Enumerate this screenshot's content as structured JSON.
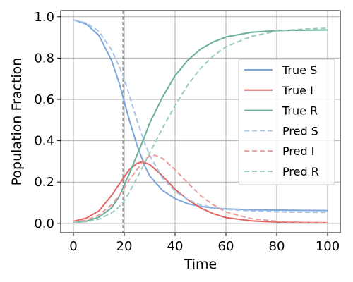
{
  "chart_data": {
    "type": "line",
    "title": "",
    "xlabel": "Time",
    "ylabel": "Population Fraction",
    "xlim": [
      -5,
      105
    ],
    "ylim": [
      -0.045,
      1.03
    ],
    "xticks": [
      0,
      20,
      40,
      60,
      80,
      100
    ],
    "xtick_labels": [
      "0",
      "20",
      "40",
      "60",
      "80",
      "100"
    ],
    "yticks": [
      0.0,
      0.2,
      0.4,
      0.6,
      0.8,
      1.0
    ],
    "ytick_labels": [
      "0.0",
      "0.2",
      "0.4",
      "0.6",
      "0.8",
      "1.0"
    ],
    "grid": true,
    "legend_position": "right",
    "vline": {
      "x": 19.5,
      "color": "#808080",
      "style": "dashed"
    },
    "series": [
      {
        "name": "True S",
        "color": "#7BA6DB",
        "style": "solid",
        "points": [
          [
            0,
            0.985
          ],
          [
            5,
            0.965
          ],
          [
            10,
            0.91
          ],
          [
            15,
            0.79
          ],
          [
            18,
            0.68
          ],
          [
            20,
            0.59
          ],
          [
            22,
            0.5
          ],
          [
            25,
            0.38
          ],
          [
            28,
            0.28
          ],
          [
            30,
            0.23
          ],
          [
            35,
            0.16
          ],
          [
            40,
            0.12
          ],
          [
            45,
            0.095
          ],
          [
            50,
            0.082
          ],
          [
            55,
            0.075
          ],
          [
            60,
            0.07
          ],
          [
            70,
            0.066
          ],
          [
            80,
            0.064
          ],
          [
            90,
            0.063
          ],
          [
            100,
            0.062
          ]
        ]
      },
      {
        "name": "True I",
        "color": "#E06666",
        "style": "solid",
        "points": [
          [
            0,
            0.01
          ],
          [
            5,
            0.025
          ],
          [
            10,
            0.06
          ],
          [
            15,
            0.135
          ],
          [
            18,
            0.19
          ],
          [
            20,
            0.225
          ],
          [
            22,
            0.26
          ],
          [
            25,
            0.29
          ],
          [
            27,
            0.298
          ],
          [
            30,
            0.285
          ],
          [
            35,
            0.23
          ],
          [
            40,
            0.165
          ],
          [
            45,
            0.115
          ],
          [
            50,
            0.075
          ],
          [
            55,
            0.047
          ],
          [
            60,
            0.028
          ],
          [
            70,
            0.012
          ],
          [
            80,
            0.006
          ],
          [
            90,
            0.004
          ],
          [
            100,
            0.003
          ]
        ]
      },
      {
        "name": "True R",
        "color": "#6AAE9C",
        "style": "solid",
        "points": [
          [
            0,
            0.005
          ],
          [
            5,
            0.01
          ],
          [
            10,
            0.03
          ],
          [
            15,
            0.075
          ],
          [
            18,
            0.13
          ],
          [
            20,
            0.185
          ],
          [
            22,
            0.24
          ],
          [
            25,
            0.33
          ],
          [
            28,
            0.42
          ],
          [
            30,
            0.485
          ],
          [
            35,
            0.61
          ],
          [
            40,
            0.715
          ],
          [
            45,
            0.79
          ],
          [
            50,
            0.843
          ],
          [
            55,
            0.878
          ],
          [
            60,
            0.902
          ],
          [
            70,
            0.925
          ],
          [
            80,
            0.933
          ],
          [
            90,
            0.935
          ],
          [
            100,
            0.936
          ]
        ]
      },
      {
        "name": "Pred S",
        "color": "#A7C4E7",
        "style": "dashed",
        "points": [
          [
            0,
            0.985
          ],
          [
            5,
            0.97
          ],
          [
            10,
            0.93
          ],
          [
            15,
            0.84
          ],
          [
            18,
            0.76
          ],
          [
            20,
            0.7
          ],
          [
            22,
            0.62
          ],
          [
            25,
            0.5
          ],
          [
            28,
            0.39
          ],
          [
            30,
            0.33
          ],
          [
            35,
            0.22
          ],
          [
            40,
            0.155
          ],
          [
            45,
            0.115
          ],
          [
            50,
            0.09
          ],
          [
            55,
            0.076
          ],
          [
            60,
            0.068
          ],
          [
            70,
            0.06
          ],
          [
            80,
            0.056
          ],
          [
            90,
            0.054
          ],
          [
            100,
            0.053
          ]
        ]
      },
      {
        "name": "Pred I",
        "color": "#EA9A9A",
        "style": "dashed",
        "points": [
          [
            0,
            0.008
          ],
          [
            5,
            0.015
          ],
          [
            10,
            0.04
          ],
          [
            15,
            0.09
          ],
          [
            18,
            0.135
          ],
          [
            20,
            0.17
          ],
          [
            22,
            0.21
          ],
          [
            25,
            0.26
          ],
          [
            28,
            0.31
          ],
          [
            30,
            0.325
          ],
          [
            32,
            0.33
          ],
          [
            35,
            0.315
          ],
          [
            40,
            0.26
          ],
          [
            45,
            0.195
          ],
          [
            50,
            0.135
          ],
          [
            55,
            0.09
          ],
          [
            60,
            0.055
          ],
          [
            70,
            0.023
          ],
          [
            80,
            0.01
          ],
          [
            90,
            0.005
          ],
          [
            100,
            0.003
          ]
        ]
      },
      {
        "name": "Pred R",
        "color": "#9ACDBE",
        "style": "dashed",
        "points": [
          [
            0,
            0.005
          ],
          [
            5,
            0.008
          ],
          [
            10,
            0.02
          ],
          [
            15,
            0.05
          ],
          [
            18,
            0.08
          ],
          [
            20,
            0.11
          ],
          [
            22,
            0.15
          ],
          [
            25,
            0.22
          ],
          [
            28,
            0.29
          ],
          [
            30,
            0.34
          ],
          [
            35,
            0.46
          ],
          [
            40,
            0.57
          ],
          [
            45,
            0.67
          ],
          [
            50,
            0.75
          ],
          [
            55,
            0.81
          ],
          [
            60,
            0.855
          ],
          [
            70,
            0.905
          ],
          [
            80,
            0.93
          ],
          [
            90,
            0.94
          ],
          [
            100,
            0.945
          ]
        ]
      }
    ]
  }
}
